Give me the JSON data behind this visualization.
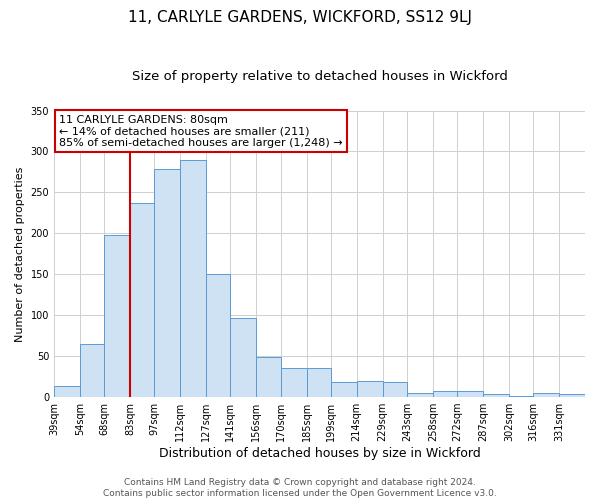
{
  "title": "11, CARLYLE GARDENS, WICKFORD, SS12 9LJ",
  "subtitle": "Size of property relative to detached houses in Wickford",
  "xlabel": "Distribution of detached houses by size in Wickford",
  "ylabel": "Number of detached properties",
  "bin_labels": [
    "39sqm",
    "54sqm",
    "68sqm",
    "83sqm",
    "97sqm",
    "112sqm",
    "127sqm",
    "141sqm",
    "156sqm",
    "170sqm",
    "185sqm",
    "199sqm",
    "214sqm",
    "229sqm",
    "243sqm",
    "258sqm",
    "272sqm",
    "287sqm",
    "302sqm",
    "316sqm",
    "331sqm"
  ],
  "bin_edges": [
    39,
    54,
    68,
    83,
    97,
    112,
    127,
    141,
    156,
    170,
    185,
    199,
    214,
    229,
    243,
    258,
    272,
    287,
    302,
    316,
    331,
    346
  ],
  "bar_heights": [
    13,
    65,
    198,
    237,
    279,
    290,
    150,
    96,
    49,
    35,
    35,
    18,
    20,
    19,
    5,
    8,
    7,
    4,
    1,
    5,
    4
  ],
  "bar_fill_color": "#cfe2f3",
  "bar_edge_color": "#5b9bd5",
  "property_line_x": 83,
  "property_line_color": "#cc0000",
  "annotation_line1": "11 CARLYLE GARDENS: 80sqm",
  "annotation_line2": "← 14% of detached houses are smaller (211)",
  "annotation_line3": "85% of semi-detached houses are larger (1,248) →",
  "annotation_box_edge_color": "#cc0000",
  "annotation_box_fill_color": "#ffffff",
  "ylim": [
    0,
    350
  ],
  "yticks": [
    0,
    50,
    100,
    150,
    200,
    250,
    300,
    350
  ],
  "footer_line1": "Contains HM Land Registry data © Crown copyright and database right 2024.",
  "footer_line2": "Contains public sector information licensed under the Open Government Licence v3.0.",
  "background_color": "#ffffff",
  "grid_color": "#d0d0d0",
  "title_fontsize": 11,
  "subtitle_fontsize": 9.5,
  "ylabel_fontsize": 8,
  "xlabel_fontsize": 9,
  "tick_fontsize": 7,
  "annotation_fontsize": 8,
  "footer_fontsize": 6.5
}
